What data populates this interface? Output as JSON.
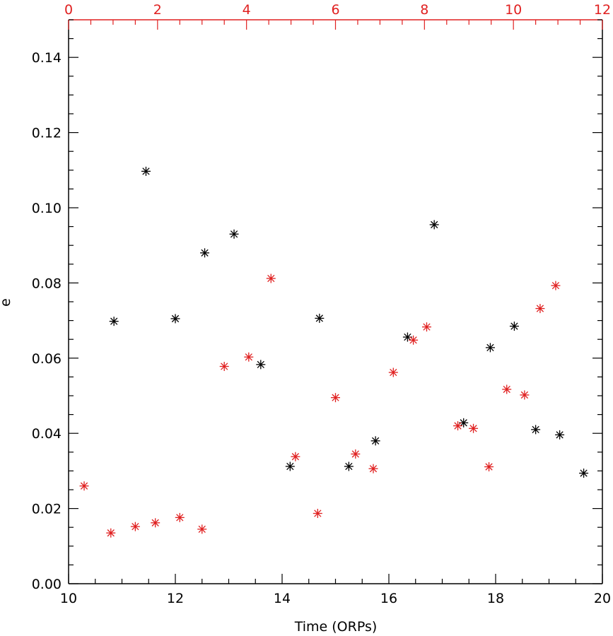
{
  "chart_data": {
    "type": "scatter",
    "title": "",
    "xlabel": "Time (ORPs)",
    "ylabel": "e",
    "xlim": [
      10,
      20
    ],
    "ylim": [
      0,
      0.15
    ],
    "x_ticks": [
      "10",
      "12",
      "14",
      "16",
      "18",
      "20"
    ],
    "y_ticks": [
      "0.00",
      "0.02",
      "0.04",
      "0.06",
      "0.08",
      "0.10",
      "0.12",
      "0.14"
    ],
    "top_axis": {
      "xlim": [
        0,
        12
      ],
      "ticks": [
        "0",
        "2",
        "4",
        "6",
        "8",
        "10",
        "12"
      ],
      "color": "#e02020"
    },
    "grid": false,
    "legend": "none",
    "series": [
      {
        "axis": "bottom",
        "color": "#000000",
        "marker": "asterisk",
        "points": [
          [
            10.85,
            0.0698
          ],
          [
            11.45,
            0.1097
          ],
          [
            12.0,
            0.0705
          ],
          [
            12.55,
            0.088
          ],
          [
            13.1,
            0.093
          ],
          [
            13.6,
            0.0583
          ],
          [
            14.15,
            0.0312
          ],
          [
            14.7,
            0.0706
          ],
          [
            15.25,
            0.0312
          ],
          [
            15.75,
            0.038
          ],
          [
            16.35,
            0.0656
          ],
          [
            16.85,
            0.0955
          ],
          [
            17.4,
            0.0428
          ],
          [
            17.9,
            0.0628
          ],
          [
            18.35,
            0.0685
          ],
          [
            18.75,
            0.041
          ],
          [
            19.2,
            0.0396
          ],
          [
            19.65,
            0.0294
          ]
        ]
      },
      {
        "axis": "top",
        "color": "#e02020",
        "marker": "asterisk",
        "points": [
          [
            0.35,
            0.026
          ],
          [
            0.95,
            0.0135
          ],
          [
            1.5,
            0.0152
          ],
          [
            1.95,
            0.0162
          ],
          [
            2.5,
            0.0176
          ],
          [
            3.0,
            0.0145
          ],
          [
            3.5,
            0.0578
          ],
          [
            4.05,
            0.0603
          ],
          [
            4.55,
            0.0812
          ],
          [
            5.1,
            0.0338
          ],
          [
            5.6,
            0.0187
          ],
          [
            6.0,
            0.0495
          ],
          [
            6.45,
            0.0345
          ],
          [
            6.85,
            0.0306
          ],
          [
            7.3,
            0.0562
          ],
          [
            7.75,
            0.0648
          ],
          [
            8.05,
            0.0683
          ],
          [
            8.75,
            0.042
          ],
          [
            9.1,
            0.0413
          ],
          [
            9.45,
            0.0311
          ],
          [
            9.85,
            0.0517
          ],
          [
            10.25,
            0.0502
          ],
          [
            10.6,
            0.0732
          ],
          [
            10.95,
            0.0793
          ]
        ]
      }
    ]
  }
}
